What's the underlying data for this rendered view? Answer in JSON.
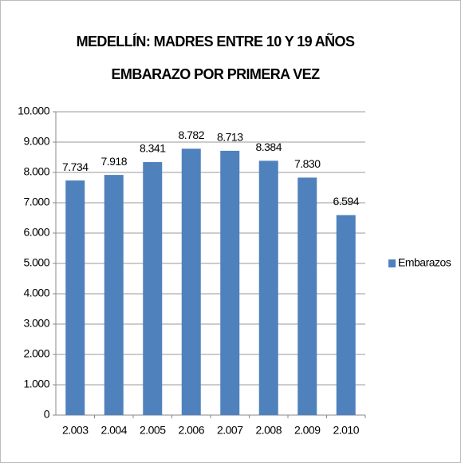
{
  "chart_data": {
    "type": "bar",
    "title": "MEDELLÍN: MADRES ENTRE 10 Y 19 AÑOS EMBARAZO POR PRIMERA VEZ",
    "categories": [
      "2.003",
      "2.004",
      "2.005",
      "2.006",
      "2.007",
      "2.008",
      "2.009",
      "2.010"
    ],
    "series": [
      {
        "name": "Embarazos",
        "color": "#4f81bd",
        "values": [
          7734,
          7918,
          8341,
          8782,
          8713,
          8384,
          7830,
          6594
        ],
        "value_labels": [
          "7.734",
          "7.918",
          "8.341",
          "8.782",
          "8.713",
          "8.384",
          "7.830",
          "6.594"
        ]
      }
    ],
    "ylim": [
      0,
      10000
    ],
    "yticks": [
      0,
      {
        "value": 1000,
        "label": "1.000"
      },
      {
        "value": 2000,
        "label": "2.000"
      },
      {
        "value": 3000,
        "label": "3.000"
      },
      {
        "value": 4000,
        "label": "4.000"
      },
      {
        "value": 5000,
        "label": "5.000"
      },
      {
        "value": 6000,
        "label": "6.000"
      },
      {
        "value": 7000,
        "label": "7.000"
      },
      {
        "value": 8000,
        "label": "8.000"
      },
      {
        "value": 9000,
        "label": "9.000"
      },
      {
        "value": 10000,
        "label": "10.000"
      }
    ],
    "grid": true,
    "legend": "right"
  }
}
